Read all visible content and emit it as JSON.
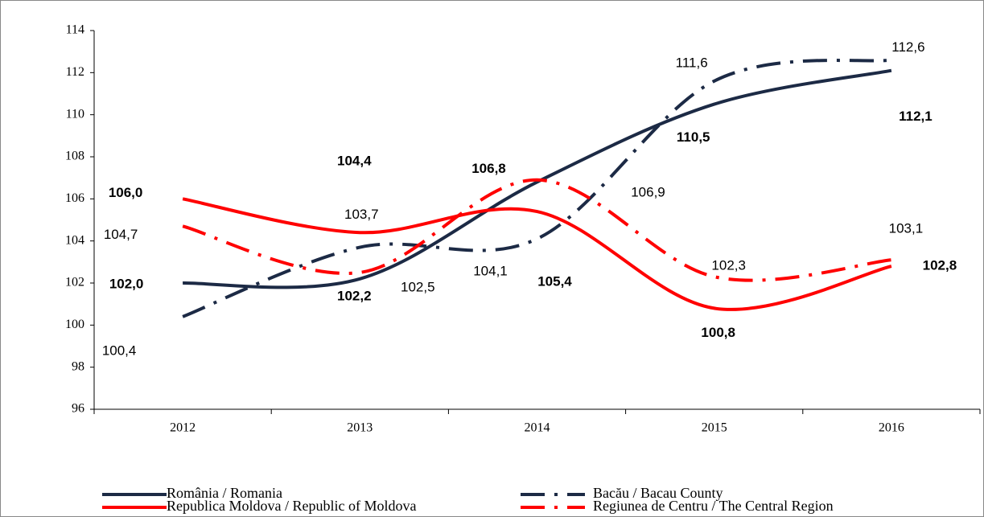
{
  "chart_data": {
    "type": "line",
    "categories": [
      "2012",
      "2013",
      "2014",
      "2015",
      "2016"
    ],
    "series": [
      {
        "name": "România / Romania",
        "color": "#1c2a45",
        "style": "solid",
        "values": [
          102.0,
          102.2,
          106.8,
          110.5,
          112.1
        ],
        "value_labels": [
          "102,0",
          "102,2",
          "106,8",
          "110,5",
          "112,1"
        ]
      },
      {
        "name": "Republica  Moldova / Republic of Moldova",
        "color": "#ff0000",
        "style": "solid",
        "values": [
          106.0,
          104.4,
          105.4,
          100.8,
          102.8
        ],
        "value_labels": [
          "106,0",
          "104,4",
          "105,4",
          "100,8",
          "102,8"
        ]
      },
      {
        "name": "Bacău / Bacau County",
        "color": "#1c2a45",
        "style": "dash-dot",
        "values": [
          100.4,
          103.7,
          104.1,
          111.6,
          112.6
        ],
        "value_labels": [
          "100,4",
          "103,7",
          "104,1",
          "111,6",
          "112,6"
        ]
      },
      {
        "name": "Regiunea de Centru / The Central Region",
        "color": "#ff0000",
        "style": "dash-dot",
        "values": [
          104.7,
          102.5,
          106.9,
          102.3,
          103.1
        ],
        "value_labels": [
          "104,7",
          "102,5",
          "106,9",
          "102,3",
          "103,1"
        ]
      }
    ],
    "ylim": [
      96,
      114
    ],
    "yticks": [
      96,
      98,
      100,
      102,
      104,
      106,
      108,
      110,
      112,
      114
    ],
    "grid": false
  }
}
